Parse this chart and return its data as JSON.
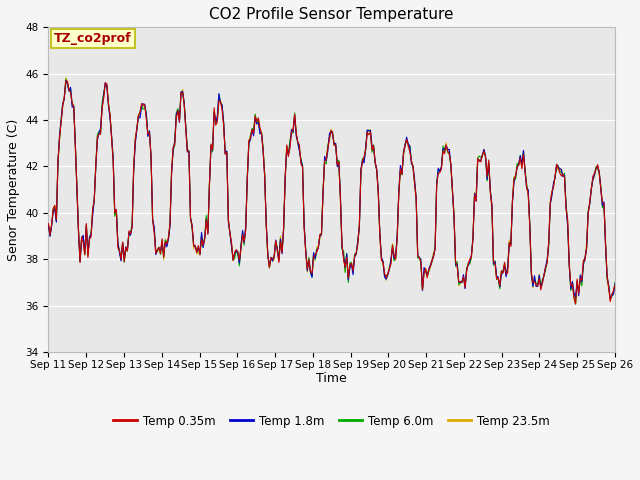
{
  "title": "CO2 Profile Sensor Temperature",
  "ylabel": "Senor Temperature (C)",
  "xlabel": "Time",
  "annotation": "TZ_co2prof",
  "ylim": [
    34,
    48
  ],
  "yticks": [
    34,
    36,
    38,
    40,
    42,
    44,
    46,
    48
  ],
  "xtick_labels": [
    "Sep 11",
    "Sep 12",
    "Sep 13",
    "Sep 14",
    "Sep 15",
    "Sep 16",
    "Sep 17",
    "Sep 18",
    "Sep 19",
    "Sep 20",
    "Sep 21",
    "Sep 22",
    "Sep 23",
    "Sep 24",
    "Sep 25",
    "Sep 26"
  ],
  "legend_labels": [
    "Temp 0.35m",
    "Temp 1.8m",
    "Temp 6.0m",
    "Temp 23.5m"
  ],
  "legend_colors": [
    "#cc0000",
    "#0000cc",
    "#00aa00",
    "#ddaa00"
  ],
  "line_colors": [
    "#cc0000",
    "#0000cc",
    "#00aa00",
    "#ddaa00"
  ],
  "fig_facecolor": "#f5f5f5",
  "plot_bg_color": "#e8e8e8",
  "title_fontsize": 11,
  "axis_fontsize": 9,
  "tick_fontsize": 7.5,
  "annotation_color": "#aa0000",
  "annotation_bg": "#ffffcc",
  "annotation_edge": "#bbbb00"
}
